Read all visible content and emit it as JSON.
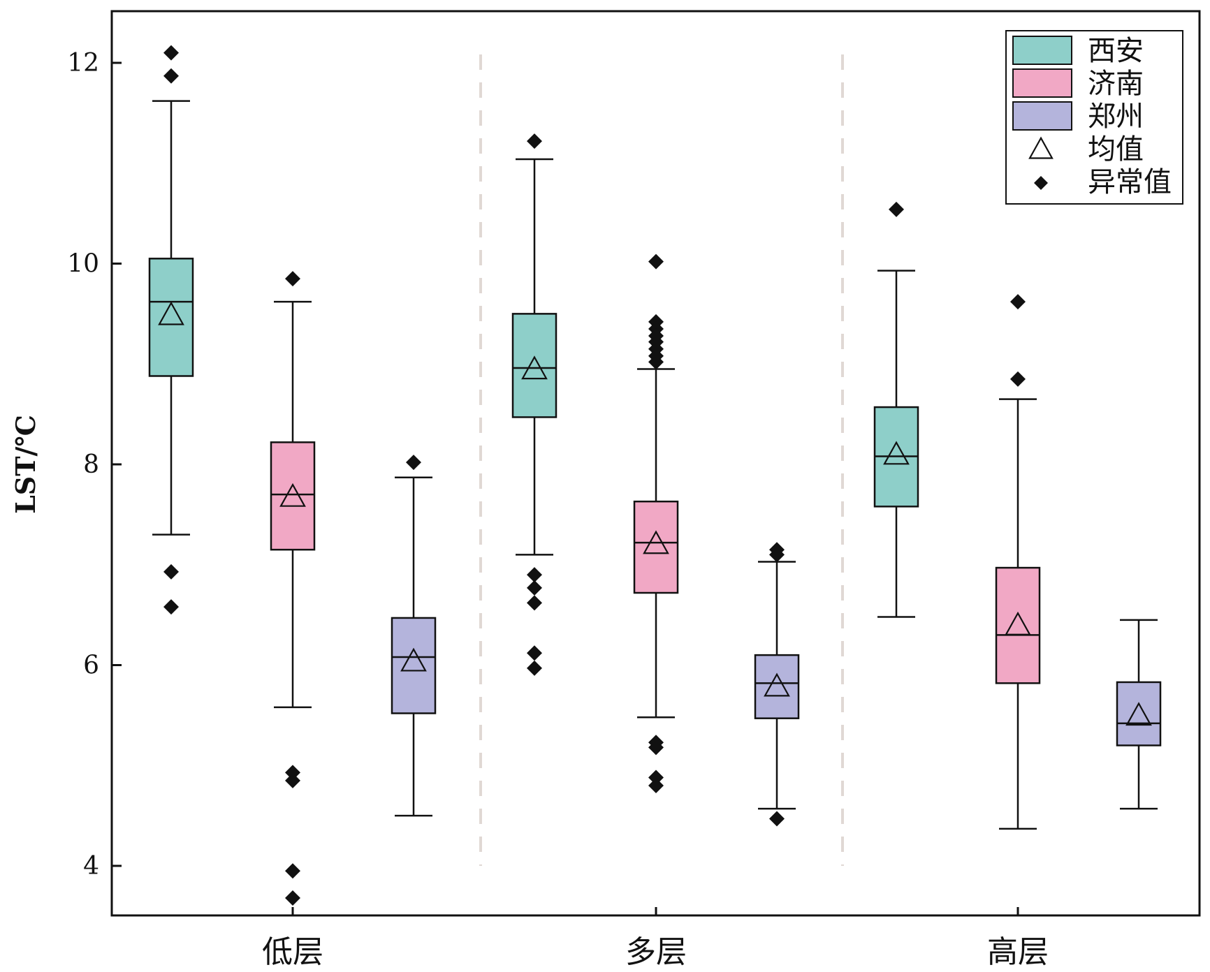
{
  "chart_data": {
    "type": "boxplot",
    "ylabel": "LST/℃",
    "xlabel": "",
    "ylim": [
      3.5,
      12.5
    ],
    "yticks": [
      4,
      6,
      8,
      10,
      12
    ],
    "categories": [
      "低层",
      "多层",
      "高层"
    ],
    "legend": {
      "placement": "top-right",
      "entries": [
        {
          "label": "西安",
          "kind": "box",
          "color": "#8ecfc9"
        },
        {
          "label": "济南",
          "kind": "box",
          "color": "#f1a8c5"
        },
        {
          "label": "郑州",
          "kind": "box",
          "color": "#b4b4dc"
        },
        {
          "label": "均值",
          "kind": "triangle"
        },
        {
          "label": "异常值",
          "kind": "diamond"
        }
      ]
    },
    "series": [
      {
        "name": "西安",
        "color": "#8ecfc9",
        "boxes": [
          {
            "whisker_low": 7.3,
            "q1": 8.88,
            "median": 9.62,
            "q3": 10.05,
            "whisker_high": 11.62,
            "mean": 9.48,
            "outliers": [
              12.1,
              11.87,
              6.93,
              6.58
            ]
          },
          {
            "whisker_low": 7.1,
            "q1": 8.47,
            "median": 8.96,
            "q3": 9.5,
            "whisker_high": 11.04,
            "mean": 8.94,
            "outliers": [
              11.22,
              6.9,
              6.77,
              6.62,
              6.12,
              5.97
            ]
          },
          {
            "whisker_low": 6.48,
            "q1": 7.58,
            "median": 8.08,
            "q3": 8.57,
            "whisker_high": 9.93,
            "mean": 8.09,
            "outliers": [
              10.54
            ]
          }
        ]
      },
      {
        "name": "济南",
        "color": "#f1a8c5",
        "boxes": [
          {
            "whisker_low": 5.58,
            "q1": 7.15,
            "median": 7.7,
            "q3": 8.22,
            "whisker_high": 9.62,
            "mean": 7.67,
            "outliers": [
              9.85,
              4.93,
              4.85,
              3.95,
              3.68
            ]
          },
          {
            "whisker_low": 5.48,
            "q1": 6.72,
            "median": 7.22,
            "q3": 7.63,
            "whisker_high": 8.95,
            "mean": 7.2,
            "outliers": [
              10.02,
              9.42,
              9.35,
              9.28,
              9.22,
              9.15,
              9.08,
              9.02,
              5.23,
              5.18,
              4.88,
              4.8
            ]
          },
          {
            "whisker_low": 4.37,
            "q1": 5.82,
            "median": 6.3,
            "q3": 6.97,
            "whisker_high": 8.65,
            "mean": 6.39,
            "outliers": [
              9.62,
              8.85
            ]
          }
        ]
      },
      {
        "name": "郑州",
        "color": "#b4b4dc",
        "boxes": [
          {
            "whisker_low": 4.5,
            "q1": 5.52,
            "median": 6.08,
            "q3": 6.47,
            "whisker_high": 7.87,
            "mean": 6.03,
            "outliers": [
              8.02
            ]
          },
          {
            "whisker_low": 4.57,
            "q1": 5.47,
            "median": 5.82,
            "q3": 6.1,
            "whisker_high": 7.03,
            "mean": 5.78,
            "outliers": [
              7.15,
              7.1,
              4.47
            ]
          },
          {
            "whisker_low": 4.57,
            "q1": 5.2,
            "median": 5.42,
            "q3": 5.83,
            "whisker_high": 6.45,
            "mean": 5.49,
            "outliers": []
          }
        ]
      }
    ]
  }
}
